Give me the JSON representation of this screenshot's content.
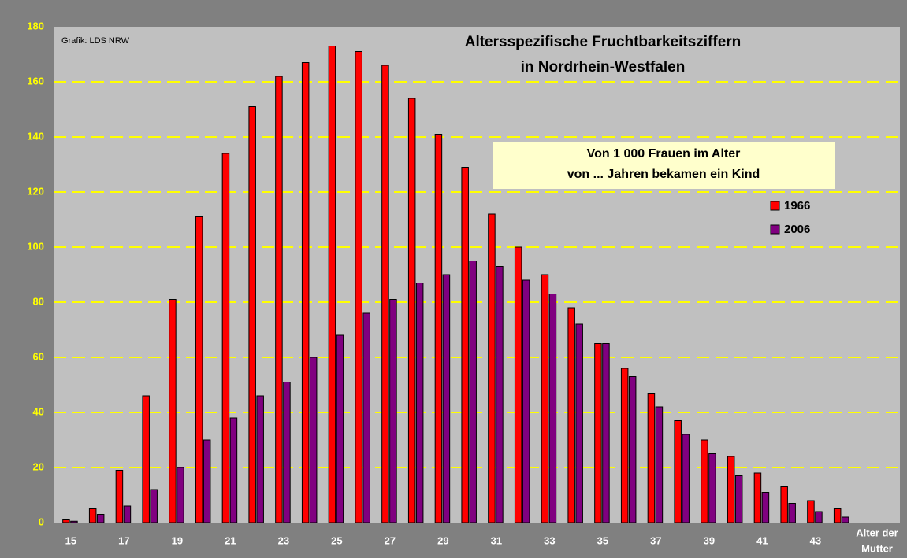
{
  "chart_data": {
    "type": "bar",
    "title": [
      "Altersspezifische Fruchtbarkeitsziffern",
      "in Nordrhein-Westfalen"
    ],
    "source": "Grafik: LDS NRW",
    "annotation": [
      "Von 1 000 Frauen im Alter",
      "von ... Jahren  bekamen ein Kind"
    ],
    "x_label": [
      "Alter der",
      "Mutter"
    ],
    "categories": [
      15,
      null,
      17,
      null,
      19,
      null,
      21,
      null,
      23,
      null,
      25,
      null,
      27,
      null,
      29,
      null,
      31,
      null,
      33,
      null,
      35,
      null,
      37,
      null,
      39,
      null,
      41,
      null,
      43,
      null
    ],
    "series": [
      {
        "name": "1966",
        "color": "#ff0000",
        "values": [
          1,
          5,
          19,
          46,
          81,
          111,
          134,
          151,
          162,
          167,
          173,
          171,
          166,
          154,
          141,
          129,
          112,
          100,
          90,
          78,
          65,
          56,
          47,
          37,
          30,
          24,
          18,
          13,
          8,
          5
        ]
      },
      {
        "name": "2006",
        "color": "#800080",
        "values": [
          0.5,
          3,
          6,
          12,
          20,
          30,
          38,
          46,
          51,
          60,
          68,
          76,
          81,
          87,
          90,
          95,
          93,
          88,
          83,
          72,
          65,
          53,
          42,
          32,
          25,
          17,
          11,
          7,
          4,
          2
        ]
      }
    ],
    "ylim": [
      0,
      180
    ],
    "yticks": [
      0,
      20,
      40,
      60,
      80,
      100,
      120,
      140,
      160,
      180
    ],
    "grid": true,
    "grid_color": "#ffff00"
  }
}
